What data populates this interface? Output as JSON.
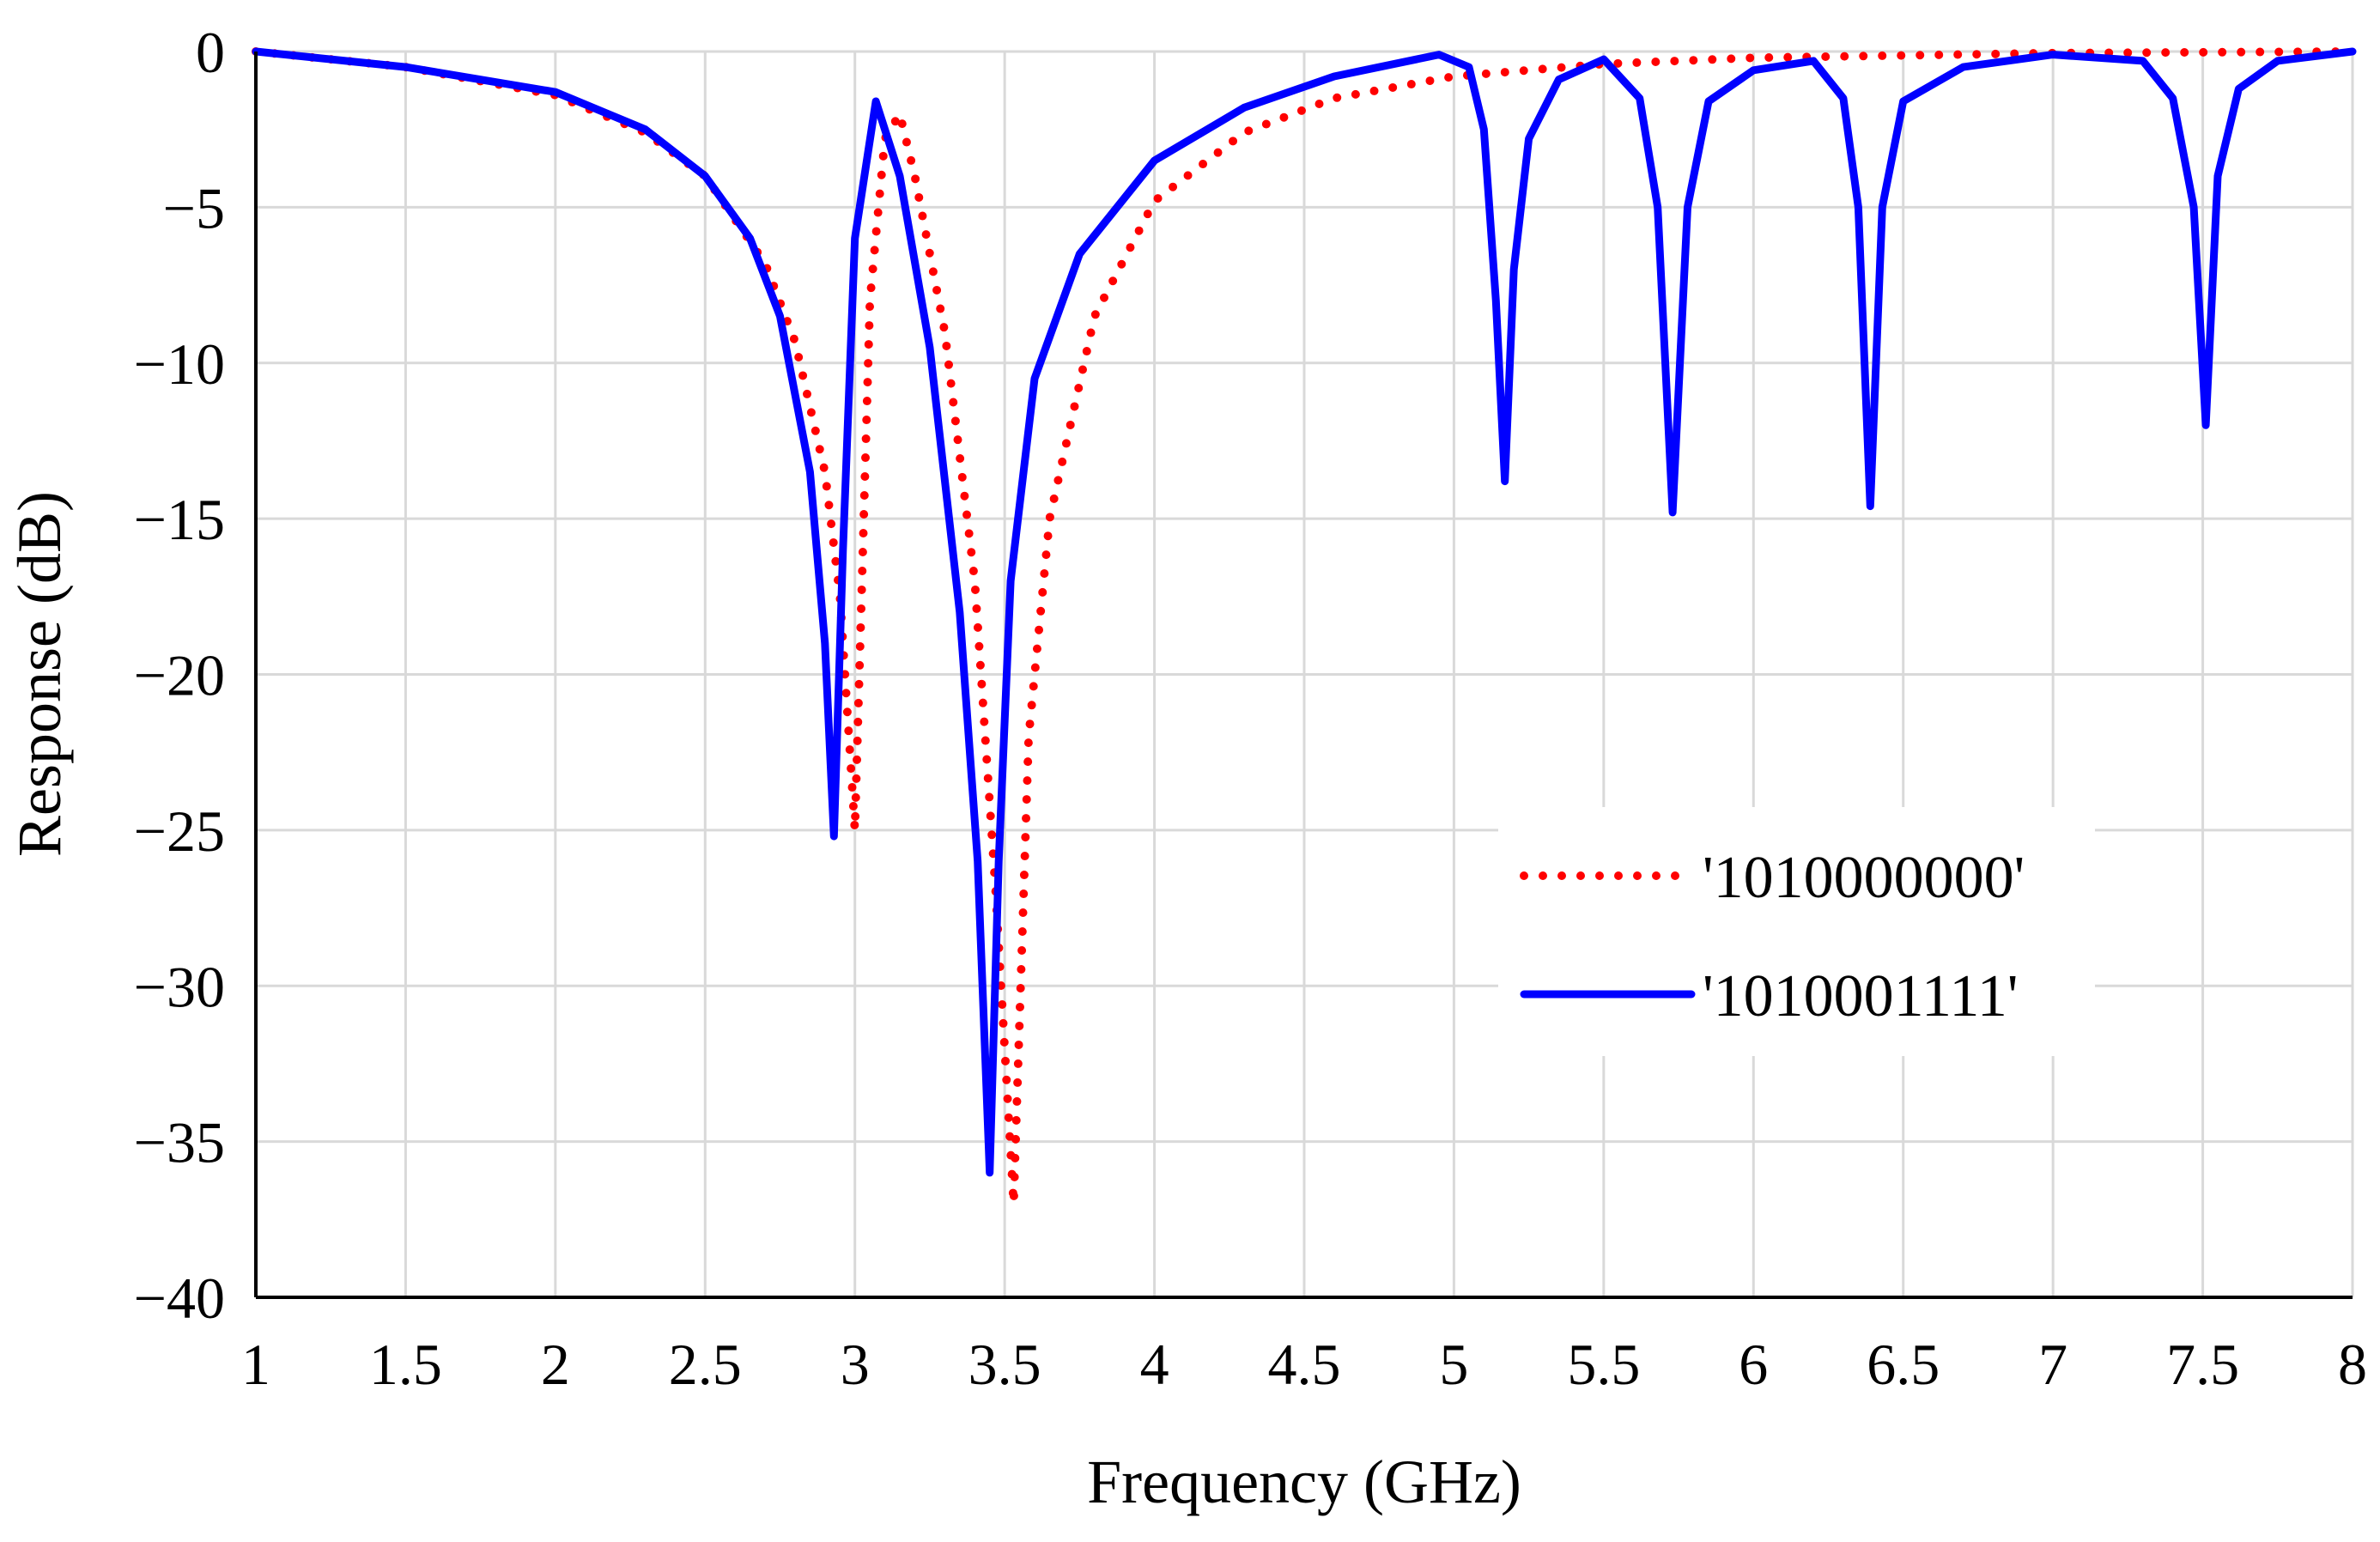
{
  "chart_data": {
    "type": "line",
    "title": "",
    "xlabel": "Frequency (GHz)",
    "ylabel": "Response (dB)",
    "xlim": [
      1,
      8
    ],
    "ylim": [
      -40,
      0
    ],
    "grid": true,
    "legend_position": "lower-right",
    "x_ticks": [
      "1",
      "1.5",
      "2",
      "2.5",
      "3",
      "3.5",
      "4",
      "4.5",
      "5",
      "5.5",
      "6",
      "6.5",
      "7",
      "7.5",
      "8"
    ],
    "y_ticks": [
      "0",
      "−5",
      "−10",
      "−15",
      "−20",
      "−25",
      "−30",
      "−35",
      "−40"
    ],
    "series": [
      {
        "name": "'1010000000'",
        "style": "dotted",
        "color": "#ff0000",
        "x": [
          1.0,
          1.5,
          2.0,
          2.3,
          2.5,
          2.7,
          2.8,
          2.9,
          2.95,
          3.0,
          3.05,
          3.1,
          3.15,
          3.2,
          3.3,
          3.4,
          3.47,
          3.53,
          3.58,
          3.65,
          3.8,
          4.0,
          4.3,
          4.6,
          5.0,
          5.5,
          6.0,
          7.0,
          8.0
        ],
        "y": [
          0.0,
          -0.5,
          -1.4,
          -2.6,
          -4.0,
          -6.8,
          -9.3,
          -13.5,
          -17.5,
          -25.0,
          -8.0,
          -2.8,
          -2.0,
          -4.0,
          -9.0,
          -17.0,
          -27.0,
          -37.0,
          -22.0,
          -15.0,
          -8.5,
          -4.8,
          -2.6,
          -1.5,
          -0.8,
          -0.4,
          -0.2,
          -0.05,
          0.0
        ]
      },
      {
        "name": "'1010001111'",
        "style": "solid",
        "color": "#0000ff",
        "x": [
          1.0,
          1.5,
          2.0,
          2.3,
          2.5,
          2.65,
          2.75,
          2.85,
          2.9,
          2.93,
          2.96,
          3.0,
          3.07,
          3.15,
          3.25,
          3.35,
          3.41,
          3.45,
          3.48,
          3.52,
          3.6,
          3.75,
          4.0,
          4.3,
          4.6,
          4.95,
          5.05,
          5.1,
          5.14,
          5.17,
          5.2,
          5.25,
          5.35,
          5.5,
          5.62,
          5.68,
          5.73,
          5.78,
          5.85,
          6.0,
          6.2,
          6.3,
          6.35,
          6.39,
          6.43,
          6.5,
          6.7,
          7.0,
          7.3,
          7.4,
          7.47,
          7.51,
          7.55,
          7.62,
          7.75,
          8.0
        ],
        "y": [
          0.0,
          -0.5,
          -1.3,
          -2.5,
          -4.0,
          -6.0,
          -8.5,
          -13.5,
          -19.0,
          -25.2,
          -16.0,
          -6.0,
          -1.6,
          -4.0,
          -9.5,
          -18.0,
          -26.0,
          -36.0,
          -26.0,
          -17.0,
          -10.5,
          -6.5,
          -3.5,
          -1.8,
          -0.8,
          -0.1,
          -0.5,
          -2.5,
          -8.0,
          -13.8,
          -7.0,
          -2.8,
          -0.9,
          -0.25,
          -1.5,
          -5.0,
          -14.8,
          -5.0,
          -1.6,
          -0.6,
          -0.3,
          -1.5,
          -5.0,
          -14.6,
          -5.0,
          -1.6,
          -0.5,
          -0.1,
          -0.3,
          -1.5,
          -5.0,
          -12.0,
          -4.0,
          -1.2,
          -0.3,
          0.0
        ]
      }
    ]
  }
}
